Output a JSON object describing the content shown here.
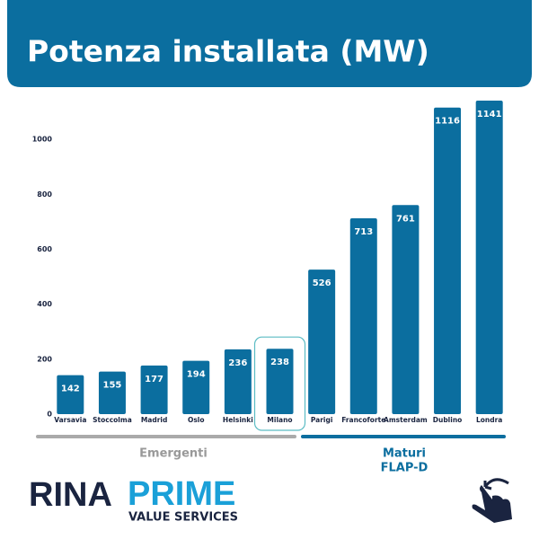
{
  "chart_data": {
    "type": "bar",
    "title": "Potenza installata (MW)",
    "categories": [
      "Varsavia",
      "Stoccolma",
      "Madrid",
      "Oslo",
      "Helsinki",
      "Milano",
      "Parigi",
      "Francoforte",
      "Amsterdam",
      "Dublino",
      "Londra"
    ],
    "values": [
      142,
      155,
      177,
      194,
      236,
      238,
      526,
      713,
      761,
      1116,
      1141
    ],
    "color": "#0b6e9f",
    "highlight": "Milano",
    "ylim": [
      0,
      1200
    ],
    "yticks": [
      0,
      200,
      400,
      600,
      800,
      1000
    ],
    "grid": false,
    "groups": [
      "Emergenti",
      "Maturi",
      "FLAP-D"
    ]
  },
  "logos": [
    "RINA",
    "PRIME",
    "VALUE SERVICES"
  ]
}
